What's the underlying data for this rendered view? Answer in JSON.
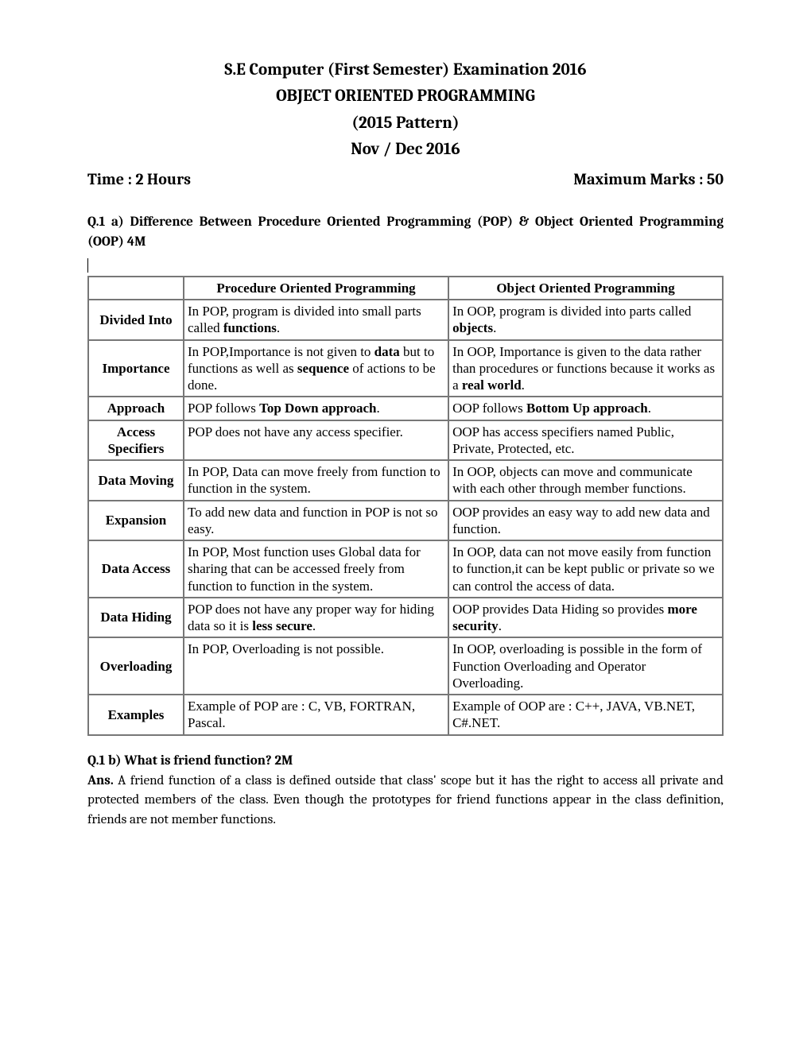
{
  "header": {
    "line1": "S.E Computer (First Semester) Examination 2016",
    "line2": "OBJECT ORIENTED PROGRAMMING",
    "line3": "(2015 Pattern)",
    "line4": "Nov / Dec 2016"
  },
  "meta": {
    "time": "Time : 2 Hours",
    "marks": "Maximum Marks : 50"
  },
  "q1a": {
    "title": "Q.1  a)  Difference  Between  Procedure  Oriented  Programming  (POP)  &  Object Oriented Programming (OOP)   4M",
    "table": {
      "col_pop": "Procedure Oriented Programming",
      "col_oop": "Object Oriented Programming"
    },
    "rows": [
      {
        "label": "Divided Into",
        "pop": "In POP, program is divided into small parts called <b>functions</b>.",
        "oop": "In OOP, program is divided into parts called <b>objects</b>."
      },
      {
        "label": "Importance",
        "pop": "In POP,Importance is not given to <b>data</b> but to functions as well as <b>sequence</b> of actions to be done.",
        "oop": "In OOP, Importance is given to the data rather than procedures or functions because it works as a <b>real world</b>."
      },
      {
        "label": "Approach",
        "pop": "POP follows <b>Top Down approach</b>.",
        "oop": "OOP follows <b>Bottom Up approach</b>."
      },
      {
        "label": "Access<br>Specifiers",
        "pop": "POP does not have any access specifier.",
        "oop": "OOP has access specifiers named Public, Private, Protected, etc."
      },
      {
        "label": "Data Moving",
        "pop": "In POP, Data can move freely from function to function in the system.",
        "oop": "In OOP, objects can move and communicate with each other through member functions."
      },
      {
        "label": "Expansion",
        "pop": "To add new data and function in POP is not so easy.",
        "oop": "OOP provides an easy way to add new data and function."
      },
      {
        "label": "Data Access",
        "pop": "In POP, Most function uses Global data for sharing that can be accessed freely from function to function in the system.",
        "oop": "In OOP, data can not move easily from function to function,it can be kept public or private so we can control the access of data."
      },
      {
        "label": "Data Hiding",
        "pop": "POP does not have any proper way for hiding data so it is <b>less secure</b>.",
        "oop": "OOP provides Data Hiding so provides <b>more security</b>."
      },
      {
        "label": "Overloading",
        "pop": "In POP, Overloading is not possible.",
        "oop": "In OOP, overloading is possible in the form of Function Overloading and Operator Overloading."
      },
      {
        "label": "Examples",
        "pop": "Example of POP are : C, VB, FORTRAN, Pascal.",
        "oop": "Example of OOP are : C++, JAVA, VB.NET, C#.NET."
      }
    ]
  },
  "q1b": {
    "title": "Q.1 b)  What is friend function? 2M",
    "ans_label": "Ans.",
    "ans_text": " A friend function of a class is defined outside that class' scope but it has the right to access all private and protected members of the class. Even though the prototypes for friend functions appear in the class definition, friends are not member functions."
  }
}
